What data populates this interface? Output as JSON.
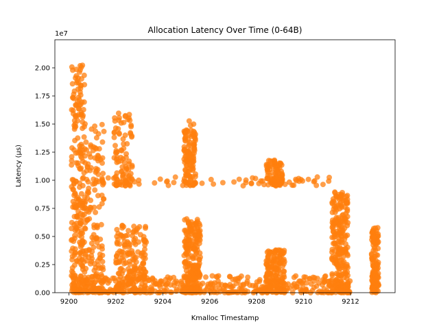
{
  "chart_data": {
    "type": "scatter",
    "title": "Allocation Latency Over Time (0-64B)",
    "xlabel": "Kmalloc Timestamp",
    "ylabel": "Latency (µs)",
    "y_offset_text": "1e7",
    "xlim": [
      9199.4,
      9213.9
    ],
    "ylim": [
      0,
      22500000
    ],
    "xticks": [
      9200,
      9202,
      9204,
      9206,
      9208,
      9210,
      9212
    ],
    "xtick_labels": [
      "9200",
      "9202",
      "9204",
      "9206",
      "9208",
      "9210",
      "9212"
    ],
    "yticks": [
      0,
      2500000,
      5000000,
      7500000,
      10000000,
      12500000,
      15000000,
      17500000,
      20000000
    ],
    "ytick_labels": [
      "0.00",
      "0.25",
      "0.50",
      "0.75",
      "1.00",
      "1.25",
      "1.50",
      "1.75",
      "2.00"
    ],
    "grid": false,
    "colors": {
      "marker": "#ff7f0e"
    },
    "clusters": [
      {
        "x": [
          9200.1,
          9200.7
        ],
        "y": [
          0,
          20300000
        ],
        "density": 0.95
      },
      {
        "x": [
          9200.7,
          9201.5
        ],
        "y": [
          0,
          15000000
        ],
        "density": 0.6
      },
      {
        "x": [
          9202.0,
          9203.3
        ],
        "y": [
          0,
          6200000
        ],
        "density": 0.7
      },
      {
        "x": [
          9201.9,
          9202.7
        ],
        "y": [
          9500000,
          16000000
        ],
        "density": 0.35
      },
      {
        "x": [
          9204.9,
          9205.6
        ],
        "y": [
          0,
          6600000
        ],
        "density": 0.9
      },
      {
        "x": [
          9204.9,
          9205.4
        ],
        "y": [
          9500000,
          15300000
        ],
        "density": 0.45
      },
      {
        "x": [
          9208.4,
          9209.2
        ],
        "y": [
          0,
          3800000
        ],
        "density": 0.6
      },
      {
        "x": [
          9208.4,
          9209.1
        ],
        "y": [
          9500000,
          11800000
        ],
        "density": 0.35
      },
      {
        "x": [
          9211.2,
          9211.9
        ],
        "y": [
          0,
          9000000
        ],
        "density": 0.95
      },
      {
        "x": [
          9212.9,
          9213.2
        ],
        "y": [
          0,
          5800000
        ],
        "density": 0.5
      }
    ],
    "baseline_band": {
      "x": [
        9200.1,
        9212.0
      ],
      "y": [
        0,
        1500000
      ]
    },
    "plateau_band": {
      "x": [
        9200.1,
        9211.1
      ],
      "y": [
        9500000,
        10300000
      ]
    }
  }
}
